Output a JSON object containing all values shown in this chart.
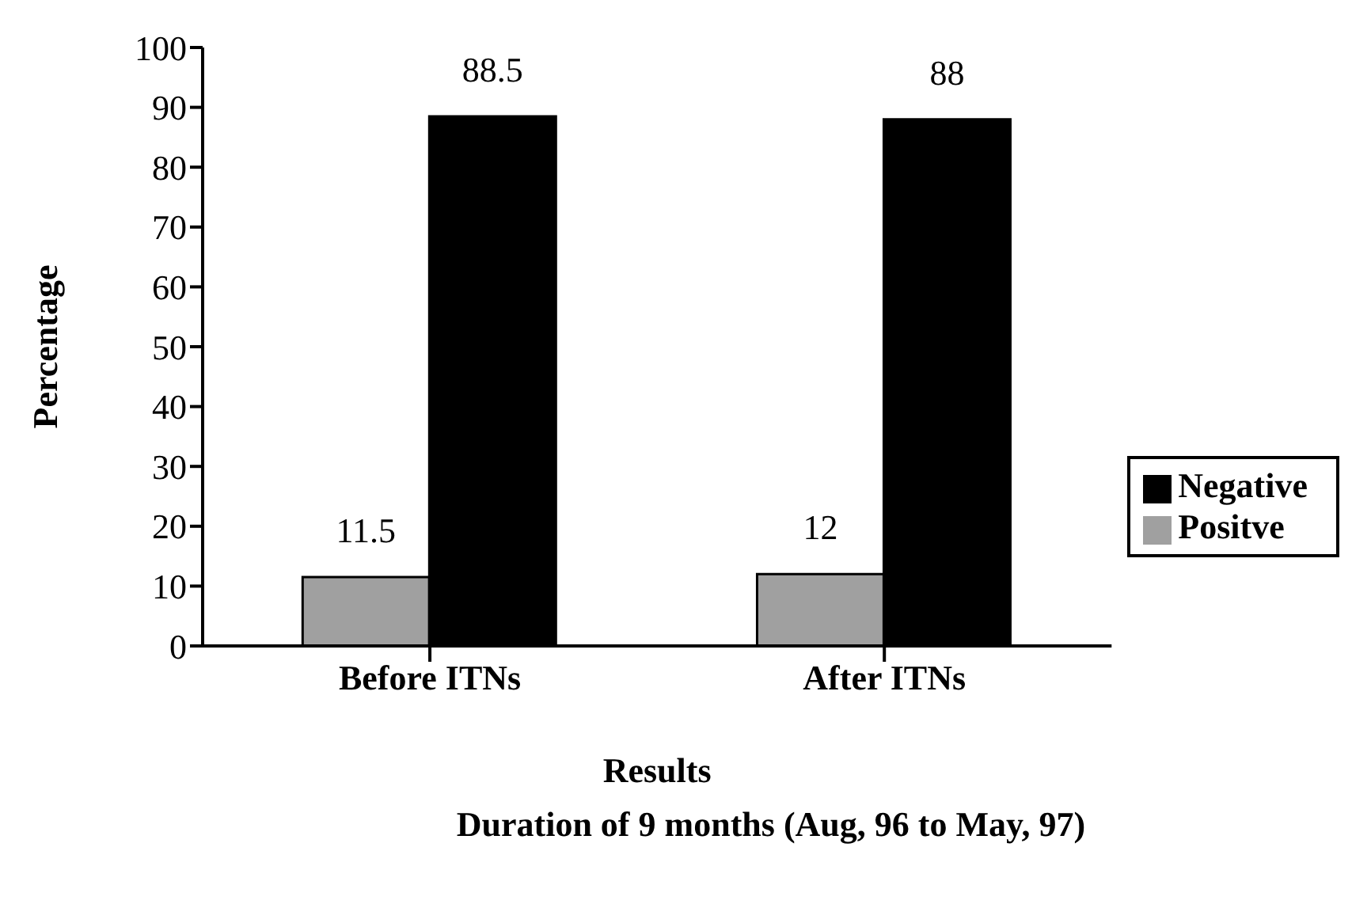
{
  "chart_data": {
    "type": "bar",
    "categories": [
      "Before ITNs",
      "After ITNs"
    ],
    "series": [
      {
        "name": "Positve",
        "color": "#a0a0a0",
        "values": [
          11.5,
          12
        ]
      },
      {
        "name": "Negative",
        "color": "#000000",
        "values": [
          88.5,
          88
        ]
      }
    ],
    "xlabel": "Results",
    "ylabel": "Percentage",
    "annotations": [
      "Duration of 9 months (Aug, 96 to May, 97)"
    ],
    "ylim": [
      0,
      100
    ],
    "yticks": [
      0,
      10,
      20,
      30,
      40,
      50,
      60,
      70,
      80,
      90,
      100
    ],
    "data_labels": true,
    "legend": "right",
    "grid": false
  }
}
